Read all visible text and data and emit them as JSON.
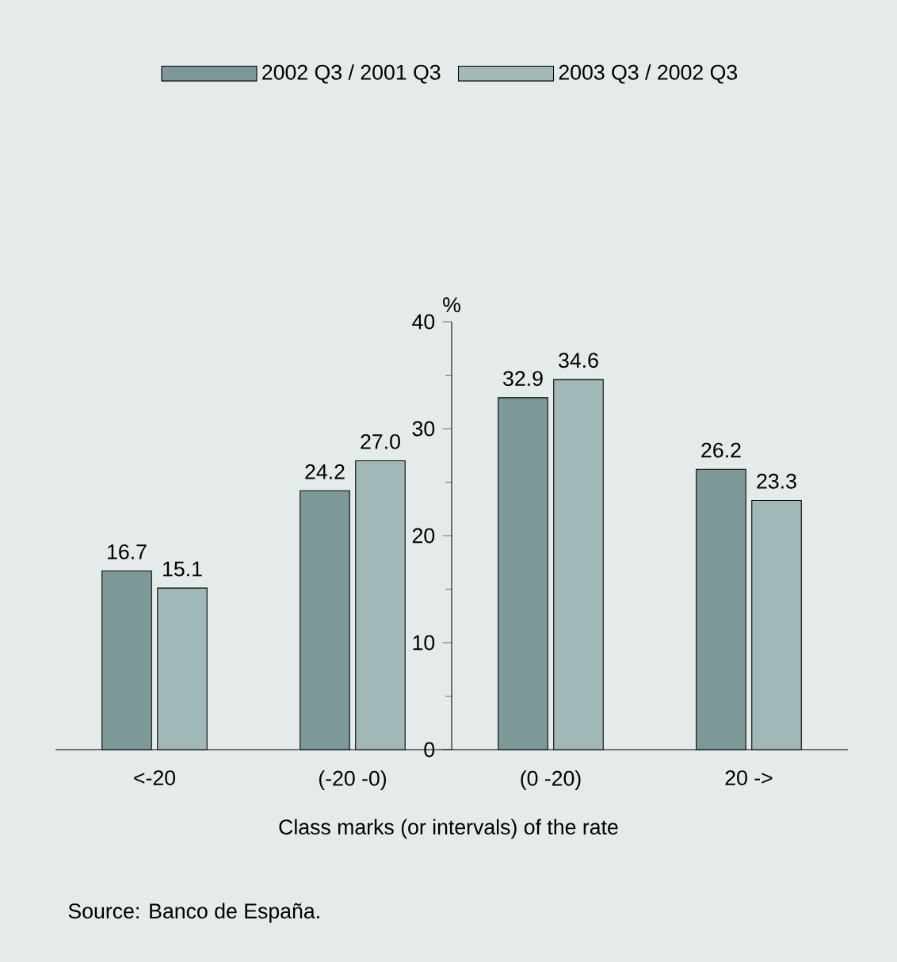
{
  "chart_data": {
    "type": "bar",
    "xlabel": "Class marks (or intervals) of the rate",
    "ylabel": "%",
    "categories": [
      "<-20",
      "(-20 -0)",
      "(0 -20)",
      "20 ->"
    ],
    "series": [
      {
        "name": "2002 Q3 / 2001 Q3",
        "color": "#7b9998",
        "values": [
          16.7,
          24.2,
          32.9,
          26.2
        ],
        "value_labels": [
          "16.7",
          "24.2",
          "32.9",
          "26.2"
        ]
      },
      {
        "name": "2003 Q3 / 2002 Q3",
        "color": "#a0b8b7",
        "values": [
          15.1,
          27.0,
          34.6,
          23.3
        ],
        "value_labels": [
          "15.1",
          "27.0",
          "34.6",
          "23.3"
        ]
      }
    ],
    "ylim": [
      0,
      40
    ],
    "yticks": [
      0,
      10,
      20,
      30,
      40
    ],
    "legend": "top",
    "grid": false,
    "annotations": [
      "Source: Banco de España."
    ]
  }
}
